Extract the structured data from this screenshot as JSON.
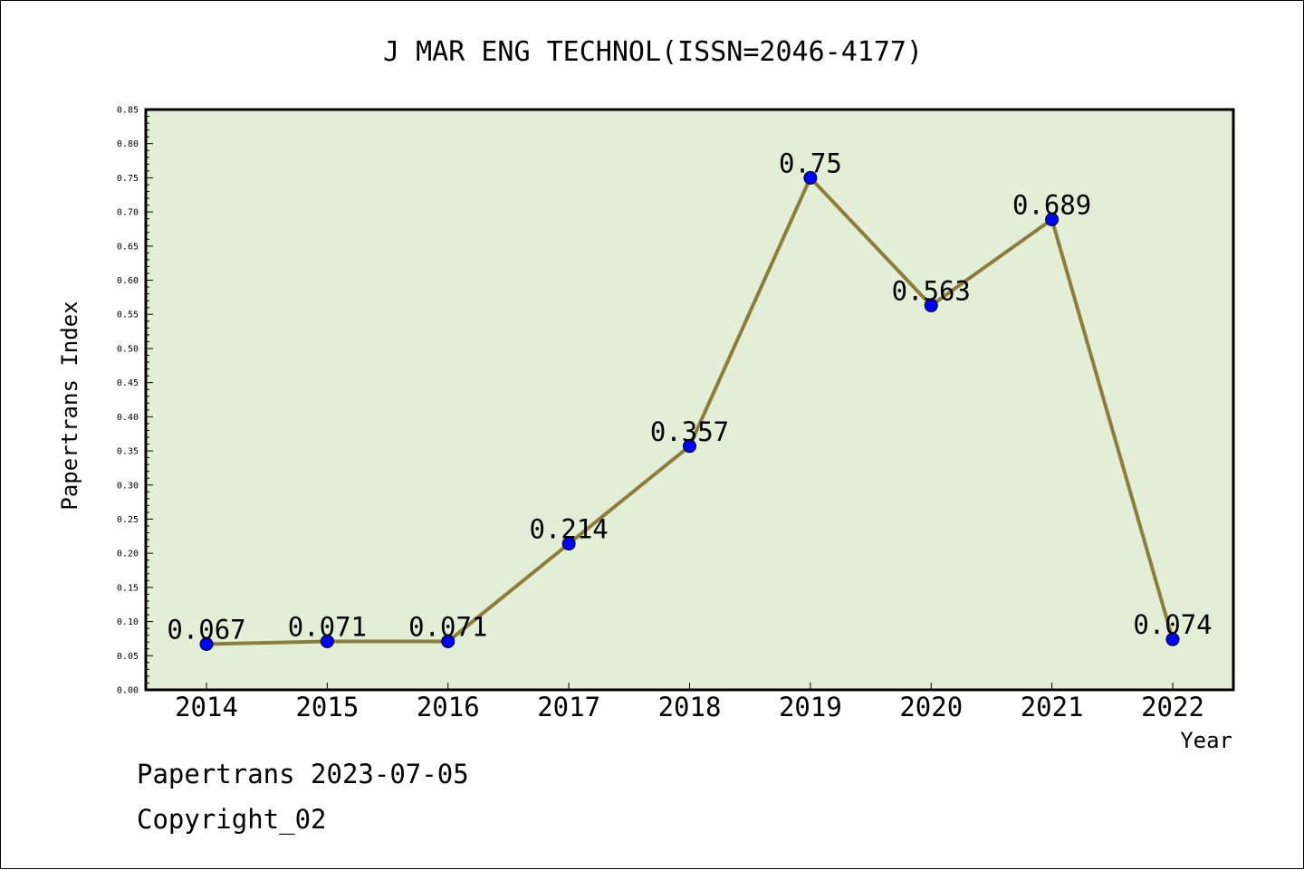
{
  "chart_data": {
    "type": "line",
    "title": "J MAR ENG TECHNOL(ISSN=2046-4177)",
    "xlabel": "Year",
    "ylabel": "Papertrans Index",
    "ylim": [
      0,
      0.85
    ],
    "y_tick_step": 0.05,
    "y_minor_per_major": 4,
    "grid": false,
    "categories": [
      "2014",
      "2015",
      "2016",
      "2017",
      "2018",
      "2019",
      "2020",
      "2021",
      "2022"
    ],
    "values": [
      0.067,
      0.071,
      0.071,
      0.214,
      0.357,
      0.75,
      0.563,
      0.689,
      0.074
    ],
    "data_labels": [
      "0.067",
      "0.071",
      "0.071",
      "0.214",
      "0.357",
      "0.75",
      "0.563",
      "0.689",
      "0.074"
    ],
    "colors": {
      "plot_background": "#e2efd6",
      "line": "#8c7d3a",
      "marker": "#0000ff",
      "axis": "#000000"
    }
  },
  "footer": {
    "line1": "Papertrans 2023-07-05",
    "line2": "Copyright_02"
  }
}
